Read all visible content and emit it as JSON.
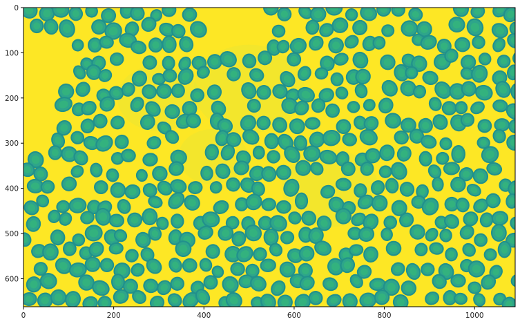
{
  "figure": {
    "image_description_kind": "microscopy",
    "colormap": "viridis",
    "background_color": "#fde725",
    "cell_edge_color": "#21918c",
    "cell_fill_color": "#35b779",
    "x_axis": {
      "range": [
        0,
        1090
      ],
      "ticks": [
        {
          "value": 0,
          "label": "0"
        },
        {
          "value": 200,
          "label": "200"
        },
        {
          "value": 400,
          "label": "400"
        },
        {
          "value": 600,
          "label": "600"
        },
        {
          "value": 800,
          "label": "800"
        },
        {
          "value": 1000,
          "label": "1000"
        }
      ]
    },
    "y_axis": {
      "range": [
        0,
        662
      ],
      "inverted": true,
      "ticks": [
        {
          "value": 0,
          "label": "0"
        },
        {
          "value": 100,
          "label": "100"
        },
        {
          "value": 200,
          "label": "200"
        },
        {
          "value": 300,
          "label": "300"
        },
        {
          "value": 400,
          "label": "400"
        },
        {
          "value": 500,
          "label": "500"
        },
        {
          "value": 600,
          "label": "600"
        }
      ]
    }
  }
}
